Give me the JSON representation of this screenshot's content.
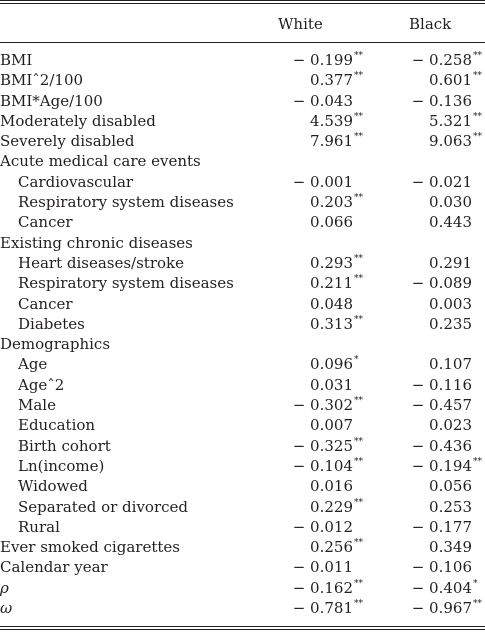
{
  "columns": [
    "White",
    "Black"
  ],
  "rows": [
    {
      "label": "BMI",
      "white": "− 0.199",
      "white_sig": "**",
      "black": "− 0.258",
      "black_sig": "**"
    },
    {
      "label": "BMIˆ2/100",
      "white": "0.377",
      "white_sig": "**",
      "black": "0.601",
      "black_sig": "**"
    },
    {
      "label": "BMI*Age/100",
      "white": "− 0.043",
      "white_sig": "",
      "black": "− 0.136",
      "black_sig": ""
    },
    {
      "label": "Moderately disabled",
      "white": "4.539",
      "white_sig": "**",
      "black": "5.321",
      "black_sig": "**"
    },
    {
      "label": "Severely disabled",
      "white": "7.961",
      "white_sig": "**",
      "black": "9.063",
      "black_sig": "**"
    },
    {
      "label": "Acute medical care events",
      "white": "",
      "white_sig": "",
      "black": "",
      "black_sig": ""
    },
    {
      "label": "Cardiovascular",
      "indent": true,
      "white": "− 0.001",
      "white_sig": "",
      "black": "− 0.021",
      "black_sig": ""
    },
    {
      "label": "Respiratory system diseases",
      "indent": true,
      "white": "0.203",
      "white_sig": "**",
      "black": "0.030",
      "black_sig": ""
    },
    {
      "label": "Cancer",
      "indent": true,
      "white": "0.066",
      "white_sig": "",
      "black": "0.443",
      "black_sig": ""
    },
    {
      "label": "Existing chronic diseases",
      "white": "",
      "white_sig": "",
      "black": "",
      "black_sig": ""
    },
    {
      "label": "Heart diseases/stroke",
      "indent": true,
      "white": "0.293",
      "white_sig": "**",
      "black": "0.291",
      "black_sig": ""
    },
    {
      "label": "Respiratory system diseases",
      "indent": true,
      "white": "0.211",
      "white_sig": "**",
      "black": "− 0.089",
      "black_sig": ""
    },
    {
      "label": "Cancer",
      "indent": true,
      "white": "0.048",
      "white_sig": "",
      "black": "0.003",
      "black_sig": ""
    },
    {
      "label": "Diabetes",
      "indent": true,
      "white": "0.313",
      "white_sig": "**",
      "black": "0.235",
      "black_sig": ""
    },
    {
      "label": "Demographics",
      "white": "",
      "white_sig": "",
      "black": "",
      "black_sig": ""
    },
    {
      "label": "Age",
      "indent": true,
      "white": "0.096",
      "white_sig": "*",
      "black": "0.107",
      "black_sig": ""
    },
    {
      "label": "Ageˆ2",
      "indent": true,
      "white": "0.031",
      "white_sig": "",
      "black": "− 0.116",
      "black_sig": ""
    },
    {
      "label": "Male",
      "indent": true,
      "white": "− 0.302",
      "white_sig": "**",
      "black": "− 0.457",
      "black_sig": ""
    },
    {
      "label": "Education",
      "indent": true,
      "white": "0.007",
      "white_sig": "",
      "black": "0.023",
      "black_sig": ""
    },
    {
      "label": "Birth cohort",
      "indent": true,
      "white": "− 0.325",
      "white_sig": "**",
      "black": "− 0.436",
      "black_sig": ""
    },
    {
      "label": "Ln(income)",
      "indent": true,
      "white": "− 0.104",
      "white_sig": "**",
      "black": "− 0.194",
      "black_sig": "**"
    },
    {
      "label": "Widowed",
      "indent": true,
      "white": "0.016",
      "white_sig": "",
      "black": "0.056",
      "black_sig": ""
    },
    {
      "label": "Separated or divorced",
      "indent": true,
      "white": "0.229",
      "white_sig": "**",
      "black": "0.253",
      "black_sig": ""
    },
    {
      "label": "Rural",
      "indent": true,
      "white": "− 0.012",
      "white_sig": "",
      "black": "− 0.177",
      "black_sig": ""
    },
    {
      "label": "Ever smoked cigarettes",
      "white": "0.256",
      "white_sig": "**",
      "black": "0.349",
      "black_sig": ""
    },
    {
      "label": "Calendar year",
      "white": "− 0.011",
      "white_sig": "",
      "black": "− 0.106",
      "black_sig": ""
    },
    {
      "label": "ρ",
      "italic": true,
      "white": "− 0.162",
      "white_sig": "**",
      "black": "− 0.404",
      "black_sig": "*"
    },
    {
      "label": "ω",
      "italic": true,
      "white": "− 0.781",
      "white_sig": "**",
      "black": "− 0.967",
      "black_sig": "**"
    }
  ]
}
